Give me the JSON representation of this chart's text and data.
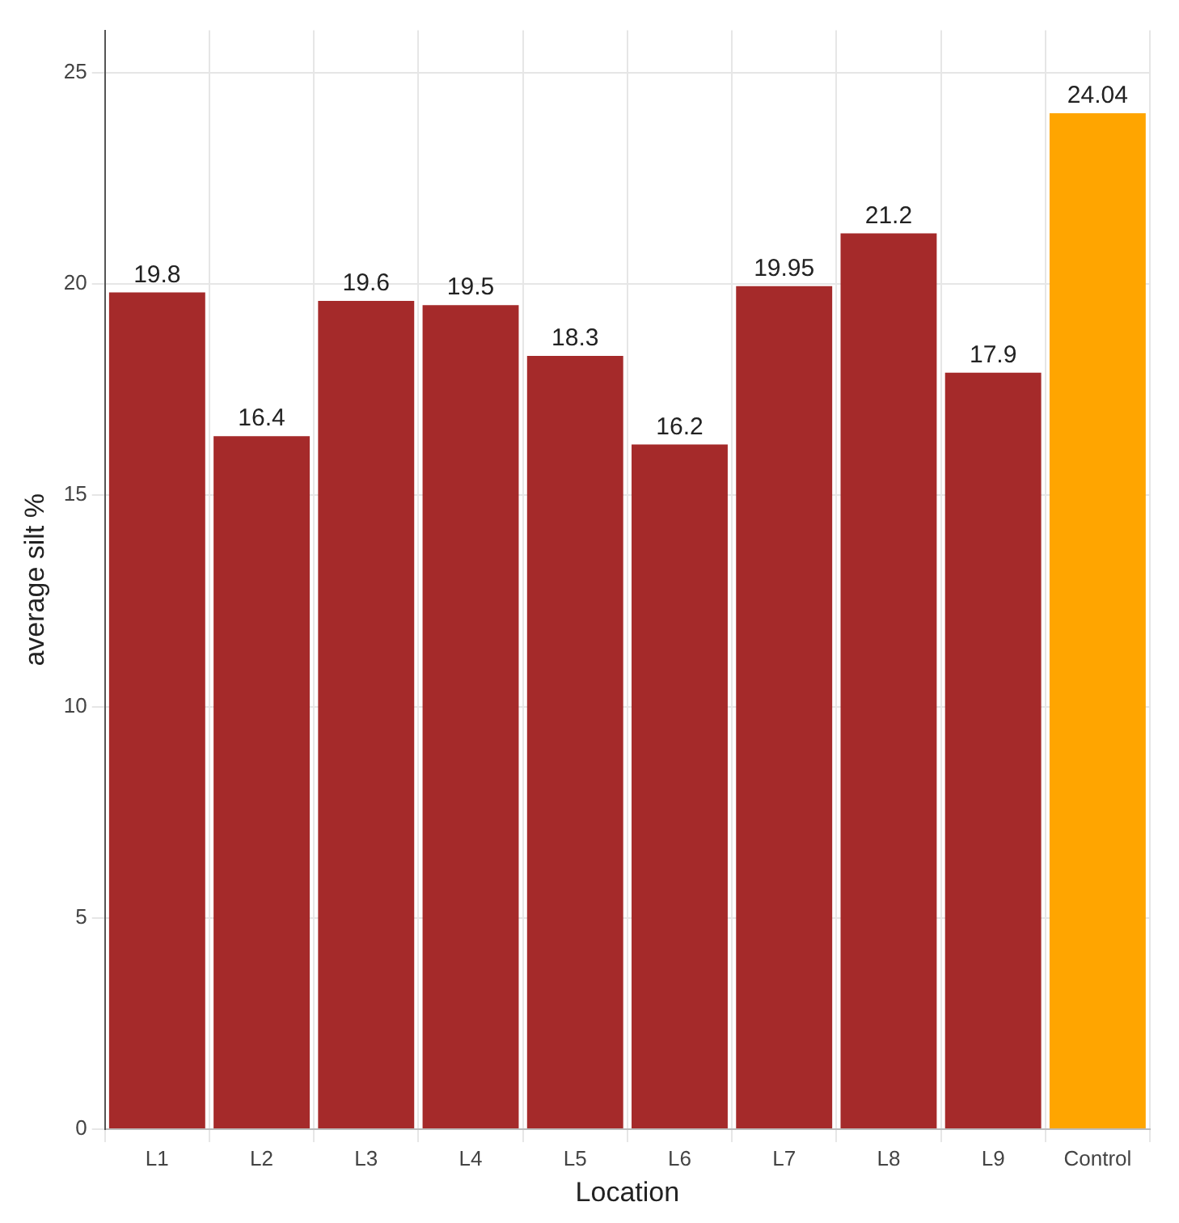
{
  "chart_data": {
    "type": "bar",
    "xlabel": "Location",
    "ylabel": "average silt %",
    "categories": [
      "L1",
      "L2",
      "L3",
      "L4",
      "L5",
      "L6",
      "L7",
      "L8",
      "L9",
      "Control"
    ],
    "values": [
      19.8,
      16.4,
      19.6,
      19.5,
      18.3,
      16.2,
      19.95,
      21.2,
      17.9,
      24.04
    ],
    "colors": [
      "#a52a2a",
      "#a52a2a",
      "#a52a2a",
      "#a52a2a",
      "#a52a2a",
      "#a52a2a",
      "#a52a2a",
      "#a52a2a",
      "#a52a2a",
      "#ffa500"
    ],
    "ylim": [
      0,
      26
    ],
    "yticks": [
      0,
      5,
      10,
      15,
      20,
      25
    ],
    "grid": true,
    "data_labels": true,
    "legend": false
  }
}
